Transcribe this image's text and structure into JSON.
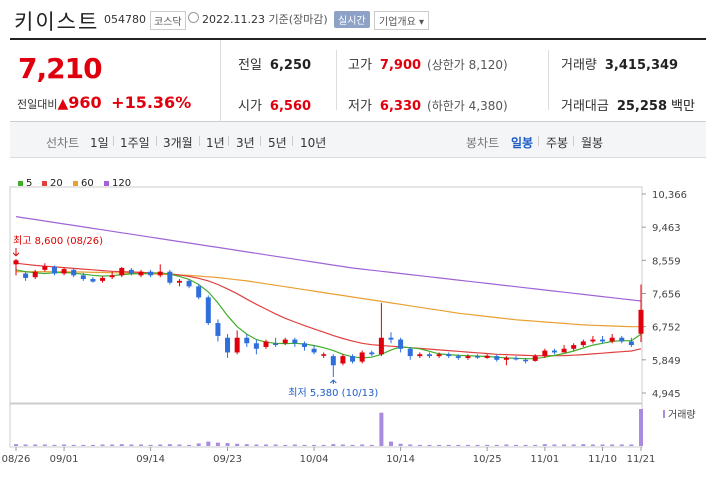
{
  "header": {
    "name": "키이스트",
    "code": "054780",
    "market": "코스닥",
    "date": "2022.11.23",
    "date_basis": "기준(장마감)",
    "realtime_label": "실시간",
    "company_info_label": "기업개요"
  },
  "summary": {
    "price": "7,210",
    "change_label": "전일대비",
    "change_value": "960",
    "change_rate": "+15.36%",
    "prev_close_label": "전일",
    "prev_close": "6,250",
    "open_label": "시가",
    "open": "6,560",
    "high_label": "고가",
    "high": "7,900",
    "upper_limit": "(상한가 8,120)",
    "low_label": "저가",
    "low": "6,330",
    "lower_limit": "(하한가 4,380)",
    "volume_label": "거래량",
    "volume": "3,415,349",
    "amount_label": "거래대금",
    "amount": "25,258",
    "amount_unit": "백만"
  },
  "tabs": {
    "line_label": "선차트",
    "line_periods": [
      "1일",
      "1주일",
      "3개월",
      "1년",
      "3년",
      "5년",
      "10년"
    ],
    "candle_label": "봉차트",
    "candle_periods": [
      "일봉",
      "주봉",
      "월봉"
    ],
    "candle_active": "일봉"
  },
  "colors": {
    "up": "#e0000d",
    "down": "#2f6fdc",
    "ma5": "#3fae2a",
    "ma20": "#e04040",
    "ma60": "#e8a030",
    "ma120": "#a064d6",
    "volume": "#a98be0"
  },
  "chart_data": {
    "type": "candlestick",
    "legend": [
      "5",
      "20",
      "60",
      "120"
    ],
    "y_ticks": [
      "10,366",
      "9,463",
      "8,559",
      "7,656",
      "6,752",
      "5,849",
      "4,945"
    ],
    "y_tick_values": [
      10366,
      9463,
      8559,
      7656,
      6752,
      5849,
      4945
    ],
    "x_ticks": [
      "08/26",
      "09/01",
      "09/14",
      "09/23",
      "10/04",
      "10/14",
      "10/25",
      "11/01",
      "11/10",
      "11/21"
    ],
    "high_note": "최고 8,600 (08/26)",
    "low_note": "최저 5,380 (10/13)",
    "volume_label": "거래량",
    "candles": [
      [
        8450,
        8560,
        8600,
        8150
      ],
      [
        8200,
        8080,
        8250,
        8000
      ],
      [
        8100,
        8250,
        8300,
        8050
      ],
      [
        8300,
        8400,
        8480,
        8250
      ],
      [
        8380,
        8200,
        8420,
        8150
      ],
      [
        8200,
        8320,
        8360,
        8150
      ],
      [
        8300,
        8150,
        8350,
        8100
      ],
      [
        8150,
        8050,
        8220,
        8000
      ],
      [
        8050,
        7980,
        8100,
        7950
      ],
      [
        8000,
        8080,
        8120,
        7950
      ],
      [
        8100,
        8150,
        8250,
        8050
      ],
      [
        8150,
        8350,
        8380,
        8100
      ],
      [
        8300,
        8200,
        8350,
        8150
      ],
      [
        8150,
        8250,
        8300,
        8100
      ],
      [
        8250,
        8150,
        8300,
        8100
      ],
      [
        8150,
        8250,
        8450,
        8100
      ],
      [
        8250,
        7950,
        8300,
        7900
      ],
      [
        7950,
        8000,
        8050,
        7850
      ],
      [
        8000,
        7850,
        8050,
        7800
      ],
      [
        7850,
        7550,
        7900,
        7500
      ],
      [
        7550,
        6850,
        7600,
        6800
      ],
      [
        6850,
        6500,
        6950,
        6350
      ],
      [
        6450,
        6050,
        6550,
        5900
      ],
      [
        6050,
        6450,
        6650,
        6000
      ],
      [
        6450,
        6300,
        6550,
        6200
      ],
      [
        6300,
        6150,
        6400,
        6000
      ],
      [
        6200,
        6350,
        6400,
        6150
      ],
      [
        6300,
        6250,
        6450,
        6200
      ],
      [
        6300,
        6400,
        6450,
        6250
      ],
      [
        6400,
        6300,
        6450,
        6200
      ],
      [
        6300,
        6200,
        6350,
        6100
      ],
      [
        6150,
        6050,
        6250,
        6000
      ],
      [
        6000,
        6000,
        6050,
        5900
      ],
      [
        5950,
        5700,
        6000,
        5380
      ],
      [
        5750,
        5950,
        6000,
        5700
      ],
      [
        5950,
        5800,
        6000,
        5750
      ],
      [
        5800,
        6050,
        6100,
        5750
      ],
      [
        6050,
        6000,
        6100,
        5950
      ],
      [
        6000,
        6450,
        7400,
        5950
      ],
      [
        6450,
        6400,
        6600,
        6300
      ],
      [
        6400,
        6150,
        6450,
        6050
      ],
      [
        6150,
        5950,
        6200,
        5850
      ],
      [
        5950,
        6000,
        6050,
        5900
      ],
      [
        6000,
        5950,
        6050,
        5900
      ],
      [
        5950,
        6000,
        6050,
        5900
      ],
      [
        6000,
        5950,
        6050,
        5900
      ],
      [
        5950,
        5900,
        6000,
        5850
      ],
      [
        5900,
        5950,
        6000,
        5850
      ],
      [
        5950,
        5920,
        6000,
        5880
      ],
      [
        5900,
        5960,
        6000,
        5880
      ],
      [
        5950,
        5850,
        6000,
        5800
      ],
      [
        5850,
        5900,
        5950,
        5700
      ],
      [
        5900,
        5870,
        5950,
        5830
      ],
      [
        5850,
        5820,
        5900,
        5750
      ],
      [
        5820,
        5950,
        6000,
        5800
      ],
      [
        5950,
        6100,
        6150,
        5900
      ],
      [
        6100,
        6050,
        6150,
        6000
      ],
      [
        6050,
        6150,
        6250,
        6050
      ],
      [
        6150,
        6250,
        6300,
        6100
      ],
      [
        6250,
        6350,
        6400,
        6200
      ],
      [
        6350,
        6400,
        6500,
        6300
      ],
      [
        6400,
        6350,
        6500,
        6300
      ],
      [
        6350,
        6450,
        6550,
        6300
      ],
      [
        6450,
        6350,
        6500,
        6300
      ],
      [
        6350,
        6250,
        6450,
        6200
      ],
      [
        6560,
        7210,
        7900,
        6330
      ]
    ],
    "ma5": [
      8300,
      8250,
      8220,
      8200,
      8220,
      8230,
      8210,
      8180,
      8150,
      8130,
      8140,
      8170,
      8190,
      8200,
      8200,
      8220,
      8180,
      8120,
      8040,
      7900,
      7700,
      7400,
      7050,
      6750,
      6550,
      6400,
      6330,
      6300,
      6290,
      6300,
      6280,
      6240,
      6180,
      6100,
      6000,
      5930,
      5900,
      5920,
      6000,
      6120,
      6200,
      6180,
      6150,
      6080,
      6010,
      5990,
      5970,
      5960,
      5950,
      5940,
      5920,
      5900,
      5890,
      5880,
      5880,
      5920,
      5970,
      6020,
      6090,
      6170,
      6250,
      6300,
      6350,
      6370,
      6370,
      6550
    ],
    "ma20": [
      8480,
      8450,
      8420,
      8400,
      8380,
      8360,
      8340,
      8320,
      8300,
      8280,
      8260,
      8250,
      8240,
      8230,
      8220,
      8210,
      8190,
      8160,
      8120,
      8070,
      8000,
      7900,
      7780,
      7650,
      7500,
      7360,
      7230,
      7100,
      6980,
      6880,
      6780,
      6690,
      6600,
      6510,
      6430,
      6360,
      6300,
      6260,
      6240,
      6220,
      6200,
      6180,
      6160,
      6140,
      6120,
      6100,
      6080,
      6060,
      6040,
      6020,
      6000,
      5990,
      5980,
      5970,
      5960,
      5960,
      5960,
      5965,
      5975,
      5990,
      6010,
      6030,
      6050,
      6070,
      6090,
      6150
    ],
    "ma60": [
      8250,
      8250,
      8250,
      8250,
      8250,
      8250,
      8240,
      8240,
      8230,
      8230,
      8220,
      8220,
      8210,
      8200,
      8190,
      8180,
      8170,
      8160,
      8150,
      8130,
      8110,
      8090,
      8060,
      8030,
      8000,
      7960,
      7920,
      7880,
      7840,
      7800,
      7760,
      7720,
      7680,
      7640,
      7600,
      7560,
      7520,
      7480,
      7440,
      7400,
      7360,
      7320,
      7280,
      7240,
      7200,
      7160,
      7120,
      7090,
      7060,
      7030,
      7000,
      6970,
      6940,
      6920,
      6900,
      6880,
      6860,
      6840,
      6820,
      6800,
      6790,
      6780,
      6770,
      6760,
      6750,
      6750
    ],
    "ma120": [
      9750,
      9710,
      9670,
      9630,
      9590,
      9550,
      9510,
      9470,
      9430,
      9390,
      9350,
      9310,
      9270,
      9230,
      9190,
      9150,
      9110,
      9070,
      9030,
      8990,
      8950,
      8910,
      8870,
      8830,
      8790,
      8750,
      8710,
      8670,
      8630,
      8590,
      8550,
      8510,
      8470,
      8430,
      8390,
      8350,
      8320,
      8290,
      8260,
      8230,
      8200,
      8170,
      8140,
      8110,
      8080,
      8050,
      8020,
      7990,
      7960,
      7930,
      7900,
      7870,
      7840,
      7810,
      7780,
      7750,
      7720,
      7690,
      7660,
      7630,
      7600,
      7570,
      7540,
      7510,
      7480,
      7450
    ],
    "volume": [
      50,
      40,
      40,
      40,
      30,
      40,
      30,
      30,
      30,
      40,
      40,
      50,
      40,
      40,
      30,
      40,
      50,
      40,
      30,
      70,
      120,
      90,
      80,
      60,
      50,
      40,
      40,
      40,
      30,
      40,
      30,
      30,
      30,
      50,
      40,
      30,
      40,
      30,
      900,
      120,
      60,
      40,
      30,
      30,
      30,
      30,
      30,
      30,
      30,
      30,
      30,
      40,
      30,
      30,
      30,
      50,
      40,
      40,
      40,
      50,
      40,
      40,
      40,
      40,
      40,
      1000
    ]
  }
}
